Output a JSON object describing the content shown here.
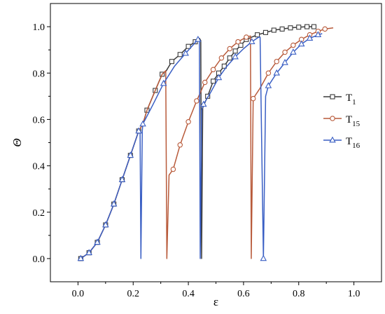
{
  "chart_data": {
    "type": "line",
    "xlabel": "ε",
    "ylabel": "Θ",
    "xlim": [
      -0.1,
      1.1
    ],
    "ylim": [
      -0.1,
      1.1
    ],
    "x_ticks": [
      "0.0",
      "0.2",
      "0.4",
      "0.6",
      "0.8",
      "1.0"
    ],
    "y_ticks": [
      "0.0",
      "0.2",
      "0.4",
      "0.6",
      "0.8",
      "1.0"
    ],
    "grid": false,
    "legend_position": "right",
    "colors": {
      "T1": "#3a3a3a",
      "T15": "#b85a3a",
      "T16": "#3a5fc4"
    },
    "series": [
      {
        "name": "T",
        "subscript": "1",
        "key": "T1",
        "marker": "square",
        "line": [
          [
            0.01,
            0.0
          ],
          [
            0.04,
            0.025
          ],
          [
            0.07,
            0.07
          ],
          [
            0.1,
            0.145
          ],
          [
            0.13,
            0.235
          ],
          [
            0.16,
            0.34
          ],
          [
            0.19,
            0.445
          ],
          [
            0.22,
            0.55
          ],
          [
            0.235,
            0.58
          ],
          [
            0.25,
            0.64
          ],
          [
            0.28,
            0.725
          ],
          [
            0.305,
            0.795
          ],
          [
            0.32,
            0.81
          ],
          [
            0.34,
            0.85
          ],
          [
            0.37,
            0.88
          ],
          [
            0.4,
            0.915
          ],
          [
            0.425,
            0.935
          ],
          [
            0.44,
            0.95
          ],
          [
            0.445,
            0.94
          ],
          [
            0.448,
            0.0
          ],
          [
            0.452,
            0.65
          ],
          [
            0.47,
            0.7
          ],
          [
            0.49,
            0.765
          ],
          [
            0.51,
            0.8
          ],
          [
            0.53,
            0.83
          ],
          [
            0.55,
            0.865
          ],
          [
            0.57,
            0.895
          ],
          [
            0.59,
            0.92
          ],
          [
            0.61,
            0.945
          ],
          [
            0.63,
            0.955
          ],
          [
            0.65,
            0.965
          ],
          [
            0.68,
            0.975
          ],
          [
            0.71,
            0.985
          ],
          [
            0.74,
            0.99
          ],
          [
            0.77,
            0.995
          ],
          [
            0.8,
            0.998
          ],
          [
            0.83,
            1.0
          ],
          [
            0.855,
            1.0
          ]
        ],
        "markers": [
          [
            0.01,
            0.0
          ],
          [
            0.04,
            0.025
          ],
          [
            0.07,
            0.07
          ],
          [
            0.1,
            0.145
          ],
          [
            0.13,
            0.235
          ],
          [
            0.16,
            0.34
          ],
          [
            0.19,
            0.445
          ],
          [
            0.22,
            0.55
          ],
          [
            0.25,
            0.64
          ],
          [
            0.28,
            0.725
          ],
          [
            0.305,
            0.795
          ],
          [
            0.34,
            0.85
          ],
          [
            0.37,
            0.88
          ],
          [
            0.4,
            0.915
          ],
          [
            0.425,
            0.935
          ],
          [
            0.47,
            0.7
          ],
          [
            0.49,
            0.765
          ],
          [
            0.51,
            0.8
          ],
          [
            0.53,
            0.83
          ],
          [
            0.55,
            0.865
          ],
          [
            0.57,
            0.895
          ],
          [
            0.59,
            0.92
          ],
          [
            0.61,
            0.945
          ],
          [
            0.65,
            0.965
          ],
          [
            0.68,
            0.975
          ],
          [
            0.71,
            0.985
          ],
          [
            0.74,
            0.99
          ],
          [
            0.77,
            0.995
          ],
          [
            0.8,
            0.998
          ],
          [
            0.83,
            1.0
          ],
          [
            0.855,
            1.0
          ]
        ]
      },
      {
        "name": "T",
        "subscript": "15",
        "key": "T15",
        "marker": "circle",
        "line": [
          [
            0.01,
            0.0
          ],
          [
            0.04,
            0.025
          ],
          [
            0.07,
            0.07
          ],
          [
            0.1,
            0.145
          ],
          [
            0.13,
            0.235
          ],
          [
            0.16,
            0.34
          ],
          [
            0.19,
            0.445
          ],
          [
            0.22,
            0.55
          ],
          [
            0.235,
            0.58
          ],
          [
            0.25,
            0.64
          ],
          [
            0.28,
            0.725
          ],
          [
            0.305,
            0.795
          ],
          [
            0.318,
            0.81
          ],
          [
            0.322,
            0.0
          ],
          [
            0.33,
            0.36
          ],
          [
            0.345,
            0.385
          ],
          [
            0.37,
            0.49
          ],
          [
            0.4,
            0.59
          ],
          [
            0.43,
            0.68
          ],
          [
            0.46,
            0.76
          ],
          [
            0.49,
            0.815
          ],
          [
            0.52,
            0.865
          ],
          [
            0.55,
            0.905
          ],
          [
            0.58,
            0.935
          ],
          [
            0.61,
            0.955
          ],
          [
            0.625,
            0.96
          ],
          [
            0.628,
            0.0
          ],
          [
            0.635,
            0.69
          ],
          [
            0.66,
            0.735
          ],
          [
            0.69,
            0.8
          ],
          [
            0.72,
            0.85
          ],
          [
            0.75,
            0.89
          ],
          [
            0.78,
            0.92
          ],
          [
            0.81,
            0.945
          ],
          [
            0.84,
            0.965
          ],
          [
            0.87,
            0.98
          ],
          [
            0.895,
            0.99
          ],
          [
            0.925,
            0.995
          ]
        ],
        "markers": [
          [
            0.345,
            0.385
          ],
          [
            0.37,
            0.49
          ],
          [
            0.4,
            0.59
          ],
          [
            0.43,
            0.68
          ],
          [
            0.46,
            0.76
          ],
          [
            0.49,
            0.815
          ],
          [
            0.52,
            0.865
          ],
          [
            0.55,
            0.905
          ],
          [
            0.58,
            0.935
          ],
          [
            0.61,
            0.955
          ],
          [
            0.635,
            0.69
          ],
          [
            0.69,
            0.8
          ],
          [
            0.72,
            0.85
          ],
          [
            0.75,
            0.89
          ],
          [
            0.78,
            0.92
          ],
          [
            0.81,
            0.945
          ],
          [
            0.84,
            0.965
          ],
          [
            0.87,
            0.98
          ],
          [
            0.895,
            0.99
          ]
        ]
      },
      {
        "name": "T",
        "subscript": "16",
        "key": "T16",
        "marker": "triangle",
        "line": [
          [
            0.01,
            0.0
          ],
          [
            0.04,
            0.025
          ],
          [
            0.07,
            0.07
          ],
          [
            0.1,
            0.145
          ],
          [
            0.13,
            0.235
          ],
          [
            0.16,
            0.34
          ],
          [
            0.19,
            0.445
          ],
          [
            0.22,
            0.55
          ],
          [
            0.225,
            0.55
          ],
          [
            0.228,
            0.0
          ],
          [
            0.233,
            0.55
          ],
          [
            0.235,
            0.58
          ],
          [
            0.27,
            0.66
          ],
          [
            0.31,
            0.755
          ],
          [
            0.35,
            0.83
          ],
          [
            0.39,
            0.885
          ],
          [
            0.42,
            0.925
          ],
          [
            0.435,
            0.945
          ],
          [
            0.44,
            0.945
          ],
          [
            0.443,
            0.0
          ],
          [
            0.448,
            0.64
          ],
          [
            0.455,
            0.665
          ],
          [
            0.48,
            0.715
          ],
          [
            0.51,
            0.78
          ],
          [
            0.54,
            0.83
          ],
          [
            0.57,
            0.87
          ],
          [
            0.6,
            0.905
          ],
          [
            0.63,
            0.935
          ],
          [
            0.655,
            0.955
          ],
          [
            0.66,
            0.955
          ],
          [
            0.672,
            0.0
          ],
          [
            0.68,
            0.7
          ],
          [
            0.69,
            0.745
          ],
          [
            0.72,
            0.8
          ],
          [
            0.75,
            0.845
          ],
          [
            0.78,
            0.89
          ],
          [
            0.81,
            0.925
          ],
          [
            0.84,
            0.95
          ],
          [
            0.87,
            0.965
          ],
          [
            0.885,
            0.97
          ]
        ],
        "markers": [
          [
            0.01,
            0.0
          ],
          [
            0.04,
            0.025
          ],
          [
            0.07,
            0.07
          ],
          [
            0.1,
            0.145
          ],
          [
            0.13,
            0.235
          ],
          [
            0.16,
            0.34
          ],
          [
            0.19,
            0.445
          ],
          [
            0.22,
            0.55
          ],
          [
            0.235,
            0.58
          ],
          [
            0.31,
            0.755
          ],
          [
            0.39,
            0.885
          ],
          [
            0.435,
            0.945
          ],
          [
            0.455,
            0.665
          ],
          [
            0.51,
            0.78
          ],
          [
            0.57,
            0.87
          ],
          [
            0.63,
            0.935
          ],
          [
            0.672,
            0.0
          ],
          [
            0.69,
            0.745
          ],
          [
            0.72,
            0.8
          ],
          [
            0.75,
            0.845
          ],
          [
            0.78,
            0.89
          ],
          [
            0.81,
            0.925
          ],
          [
            0.84,
            0.95
          ],
          [
            0.87,
            0.965
          ]
        ]
      }
    ]
  }
}
